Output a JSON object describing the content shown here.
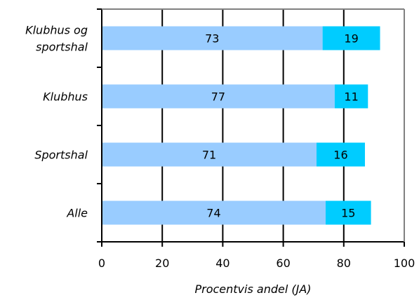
{
  "chart_data": {
    "type": "bar",
    "orientation": "horizontal",
    "stacked": true,
    "categories": [
      "Klubhus og sportshal",
      "Klubhus",
      "Sportshal",
      "Alle"
    ],
    "category_lines": [
      [
        "Klubhus og",
        "sportshal"
      ],
      [
        "Klubhus"
      ],
      [
        "Sportshal"
      ],
      [
        "Alle"
      ]
    ],
    "series": [
      {
        "values": [
          73,
          77,
          71,
          74
        ],
        "color": "#99ccff"
      },
      {
        "values": [
          19,
          11,
          16,
          15
        ],
        "color": "#00ccff"
      }
    ],
    "xlabel": "Procentvis andel (JA)",
    "ylabel": "",
    "xlim": [
      0,
      100
    ],
    "xticks": [
      0,
      20,
      40,
      60,
      80,
      100
    ],
    "grid": "vertical",
    "legend": "none"
  }
}
